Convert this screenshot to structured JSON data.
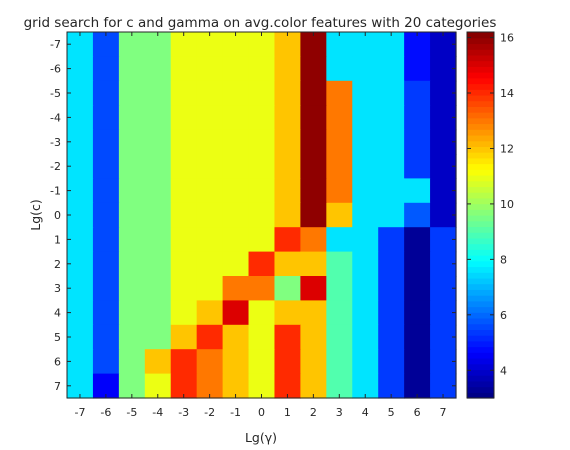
{
  "chart_data": {
    "type": "heatmap",
    "title": "grid search for c and gamma on avg.color features with 20 categories",
    "xlabel": "Lg(γ)",
    "ylabel": "Lg(c)",
    "x_ticks": [
      "-7",
      "-6",
      "-5",
      "-4",
      "-3",
      "-2",
      "-1",
      "0",
      "1",
      "2",
      "3",
      "4",
      "5",
      "6",
      "7"
    ],
    "y_ticks": [
      "-7",
      "-6",
      "-5",
      "-4",
      "-3",
      "-2",
      "-1",
      "0",
      "1",
      "2",
      "3",
      "4",
      "5",
      "6",
      "7"
    ],
    "x": [
      -7,
      -6,
      -5,
      -4,
      -3,
      -2,
      -1,
      0,
      1,
      2,
      3,
      4,
      5,
      6,
      7
    ],
    "y": [
      -7,
      -6,
      -5,
      -4,
      -3,
      -2,
      -1,
      0,
      1,
      2,
      3,
      4,
      5,
      6,
      7
    ],
    "z": [
      [
        7.6,
        5.6,
        9.6,
        9.6,
        11,
        11,
        11,
        11,
        12,
        16,
        7.6,
        7.6,
        7.6,
        4.8,
        3.9
      ],
      [
        7.6,
        5.6,
        9.6,
        9.6,
        11,
        11,
        11,
        11,
        12,
        16,
        7.6,
        7.6,
        7.6,
        4.8,
        3.9
      ],
      [
        7.6,
        5.6,
        9.6,
        9.6,
        11,
        11,
        11,
        11,
        12,
        16,
        13,
        7.6,
        7.6,
        5.4,
        3.9
      ],
      [
        7.6,
        5.6,
        9.6,
        9.6,
        11,
        11,
        11,
        11,
        12,
        16,
        13,
        7.6,
        7.6,
        5.4,
        3.9
      ],
      [
        7.6,
        5.6,
        9.6,
        9.6,
        11,
        11,
        11,
        11,
        12,
        16,
        13,
        7.6,
        7.6,
        5.4,
        3.9
      ],
      [
        7.6,
        5.6,
        9.6,
        9.6,
        11,
        11,
        11,
        11,
        12,
        16,
        13,
        7.6,
        7.6,
        5.4,
        3.9
      ],
      [
        7.6,
        5.6,
        9.6,
        9.6,
        11,
        11,
        11,
        11,
        12,
        16,
        13,
        7.6,
        7.6,
        7.6,
        3.9
      ],
      [
        7.6,
        5.6,
        9.6,
        9.6,
        11,
        11,
        11,
        11,
        12,
        16,
        12,
        7.6,
        7.6,
        5.8,
        3.9
      ],
      [
        7.6,
        5.6,
        9.6,
        9.6,
        11,
        11,
        11,
        11,
        14,
        13,
        7.6,
        7.6,
        5.4,
        3.3,
        5.4
      ],
      [
        7.6,
        5.6,
        9.6,
        9.6,
        11,
        11,
        11,
        14,
        12,
        12,
        9,
        7.6,
        5.4,
        3.3,
        5.4
      ],
      [
        7.6,
        5.6,
        9.6,
        9.6,
        11,
        11,
        13,
        13,
        9.6,
        15,
        9,
        7.6,
        5.4,
        3.3,
        5.4
      ],
      [
        7.6,
        5.6,
        9.6,
        9.6,
        11,
        12,
        15,
        11,
        12,
        12,
        9,
        7.6,
        5.4,
        3.3,
        5.4
      ],
      [
        7.6,
        5.6,
        9.6,
        9.6,
        12,
        14,
        12,
        11,
        14,
        12,
        9,
        7.6,
        5.4,
        3.3,
        5.4
      ],
      [
        7.6,
        5.6,
        9.6,
        12,
        14,
        13,
        12,
        11,
        14,
        12,
        9,
        7.6,
        5.4,
        3.3,
        5.4
      ],
      [
        7.6,
        4.6,
        9.6,
        11,
        14,
        13,
        12,
        11,
        14,
        12,
        9,
        7.6,
        5.4,
        3.3,
        5.4
      ]
    ],
    "colorbar": {
      "ticks": [
        "4",
        "6",
        "8",
        "10",
        "12",
        "14",
        "16"
      ],
      "range": [
        3,
        16.2
      ],
      "colormap": "jet"
    }
  }
}
